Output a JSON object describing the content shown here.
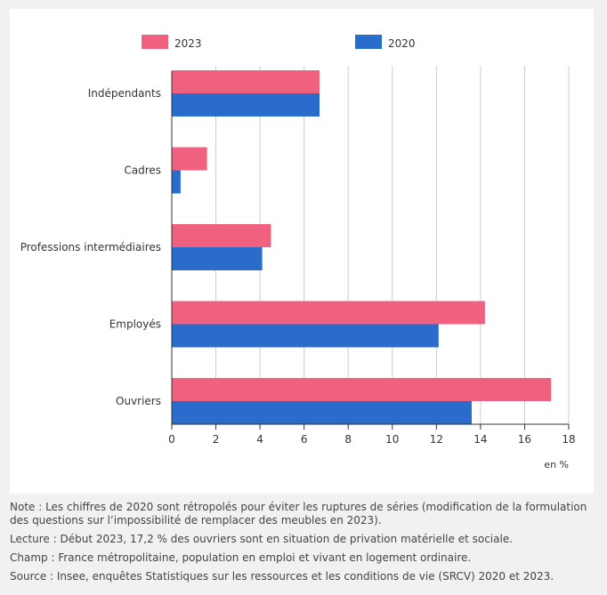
{
  "chart_data": {
    "type": "bar",
    "orientation": "horizontal",
    "categories": [
      "Indépendants",
      "Cadres",
      "Professions intermédiaires",
      "Employés",
      "Ouvriers"
    ],
    "series": [
      {
        "name": "2023",
        "color": "#f0607f",
        "values": [
          6.7,
          1.6,
          4.5,
          14.2,
          17.2
        ]
      },
      {
        "name": "2020",
        "color": "#2a6ccb",
        "values": [
          6.7,
          0.4,
          4.1,
          12.1,
          13.6
        ]
      }
    ],
    "xlim": [
      0,
      18
    ],
    "xticks": [
      "0",
      "2",
      "4",
      "6",
      "8",
      "10",
      "12",
      "14",
      "16",
      "18"
    ],
    "xlabel": "en %",
    "legend_position": "top",
    "grid": true
  },
  "notes": {
    "note": "Note : Les chiffres de 2020 sont rétropolés pour éviter les ruptures de séries (modification de la formulation des questions sur l’impossibilité de remplacer des meubles en 2023).",
    "lecture": "Lecture : Début 2023, 17,2 % des ouvriers sont en situation de privation matérielle et sociale.",
    "champ": "Champ : France métropolitaine, population en emploi et vivant en logement ordinaire.",
    "source": "Source : Insee, enquêtes Statistiques sur les ressources et les conditions de vie (SRCV) 2020 et 2023."
  }
}
